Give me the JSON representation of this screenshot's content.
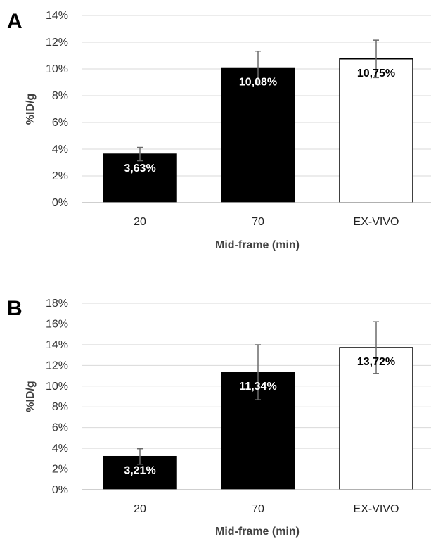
{
  "panels": [
    {
      "letter": "A"
    },
    {
      "letter": "B"
    }
  ],
  "chart_data": [
    {
      "type": "bar",
      "categories": [
        "20",
        "70",
        "EX-VIVO"
      ],
      "values": [
        3.63,
        10.08,
        10.75
      ],
      "errors": [
        0.5,
        1.25,
        1.4
      ],
      "data_labels": [
        "3,63%",
        "10,08%",
        "10,75%"
      ],
      "bar_colors": [
        "#000000",
        "#000000",
        "#ffffff"
      ],
      "label_colors": [
        "#ffffff",
        "#ffffff",
        "#000000"
      ],
      "xlabel": "Mid-frame (min)",
      "ylabel": "%ID/g",
      "ylim": [
        0,
        14
      ],
      "yticks": [
        0,
        2,
        4,
        6,
        8,
        10,
        12,
        14
      ],
      "ytick_labels": [
        "0%",
        "2%",
        "4%",
        "6%",
        "8%",
        "10%",
        "12%",
        "14%"
      ],
      "grid": true
    },
    {
      "type": "bar",
      "categories": [
        "20",
        "70",
        "EX-VIVO"
      ],
      "values": [
        3.21,
        11.34,
        13.72
      ],
      "errors": [
        0.75,
        2.65,
        2.5
      ],
      "data_labels": [
        "3,21%",
        "11,34%",
        "13,72%"
      ],
      "bar_colors": [
        "#000000",
        "#000000",
        "#ffffff"
      ],
      "label_colors": [
        "#ffffff",
        "#ffffff",
        "#000000"
      ],
      "xlabel": "Mid-frame (min)",
      "ylabel": "%ID/g",
      "ylim": [
        0,
        18
      ],
      "yticks": [
        0,
        2,
        4,
        6,
        8,
        10,
        12,
        14,
        16,
        18
      ],
      "ytick_labels": [
        "0%",
        "2%",
        "4%",
        "6%",
        "8%",
        "10%",
        "12%",
        "14%",
        "16%",
        "18%"
      ],
      "grid": true
    }
  ]
}
